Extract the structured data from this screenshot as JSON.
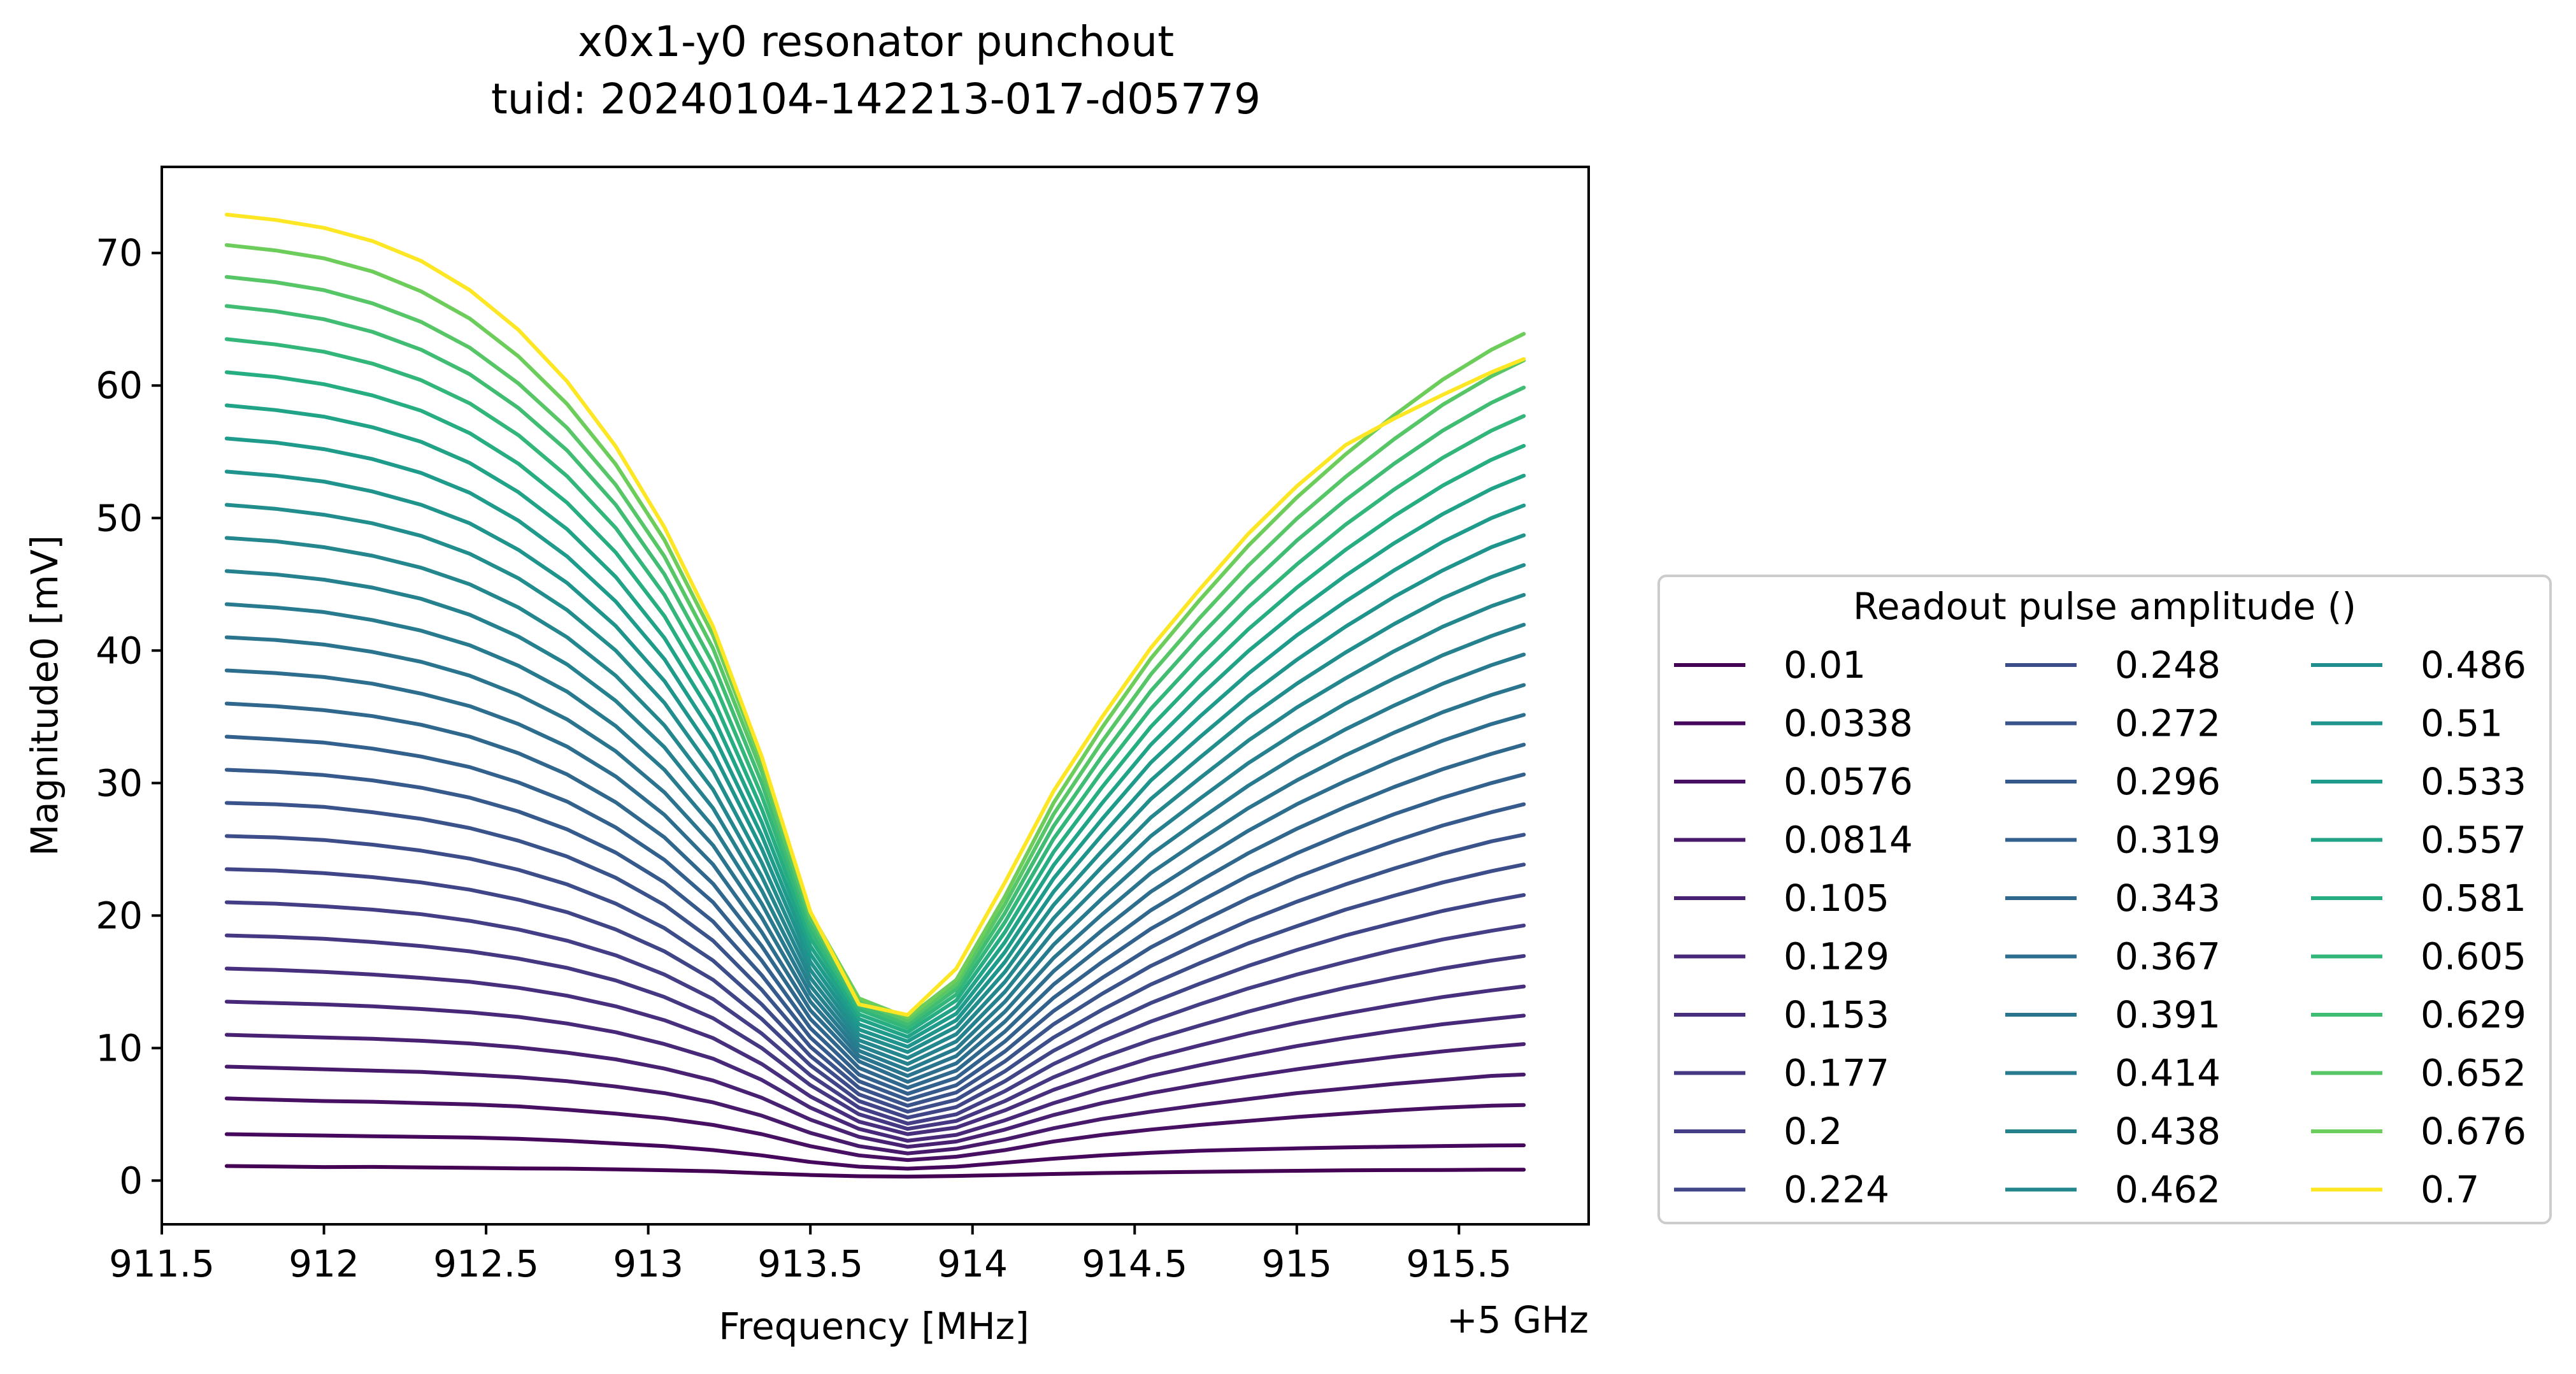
{
  "chart_data": {
    "type": "line",
    "title": "x0x1-y0 resonator punchout",
    "subtitle": "tuid: 20240104-142213-017-d05779",
    "xlabel": "Frequency [MHz]",
    "x_offset_label": "+5 GHz",
    "ylabel": "Magnitude0 [mV]",
    "xlim": [
      911.5,
      915.9
    ],
    "ylim": [
      -3.3,
      76.5
    ],
    "x_ticks": [
      "911.5",
      "912",
      "912.5",
      "913",
      "913.5",
      "914",
      "914.5",
      "915",
      "915.5"
    ],
    "x_tick_values": [
      911.5,
      912,
      912.5,
      913,
      913.5,
      914,
      914.5,
      915,
      915.5
    ],
    "y_ticks": [
      "0",
      "10",
      "20",
      "30",
      "40",
      "50",
      "60",
      "70"
    ],
    "y_tick_values": [
      0,
      10,
      20,
      30,
      40,
      50,
      60,
      70
    ],
    "grid": false,
    "legend": {
      "title": "Readout pulse amplitude ()",
      "placement": "outside-right",
      "columns": 3
    },
    "x": [
      911.7,
      911.85,
      912.0,
      912.15,
      912.3,
      912.45,
      912.6,
      912.75,
      912.9,
      913.05,
      913.2,
      913.35,
      913.5,
      913.65,
      913.8,
      913.95,
      914.1,
      914.25,
      914.4,
      914.55,
      914.7,
      914.85,
      915.0,
      915.15,
      915.3,
      915.45,
      915.6,
      915.7
    ],
    "series": [
      {
        "name": "0.01",
        "color": "#440154",
        "values": [
          1.1,
          1.06,
          1.02,
          1.03,
          1.0,
          0.96,
          0.92,
          0.9,
          0.85,
          0.78,
          0.7,
          0.55,
          0.42,
          0.33,
          0.3,
          0.35,
          0.42,
          0.5,
          0.57,
          0.62,
          0.66,
          0.7,
          0.74,
          0.77,
          0.79,
          0.8,
          0.82,
          0.82
        ]
      },
      {
        "name": "0.0338",
        "color": "#46085c",
        "values": [
          3.5,
          3.45,
          3.4,
          3.35,
          3.3,
          3.25,
          3.15,
          3.0,
          2.8,
          2.6,
          2.3,
          1.9,
          1.4,
          1.05,
          0.9,
          1.05,
          1.35,
          1.65,
          1.9,
          2.1,
          2.25,
          2.35,
          2.43,
          2.5,
          2.56,
          2.61,
          2.65,
          2.66
        ]
      },
      {
        "name": "0.0576",
        "color": "#471063",
        "values": [
          6.2,
          6.1,
          6.0,
          5.95,
          5.85,
          5.75,
          5.6,
          5.35,
          5.05,
          4.7,
          4.2,
          3.5,
          2.6,
          1.9,
          1.55,
          1.8,
          2.3,
          2.95,
          3.45,
          3.85,
          4.2,
          4.5,
          4.8,
          5.05,
          5.3,
          5.5,
          5.65,
          5.7
        ]
      },
      {
        "name": "0.0814",
        "color": "#481a6c",
        "values": [
          8.6,
          8.5,
          8.4,
          8.3,
          8.2,
          8.0,
          7.8,
          7.5,
          7.1,
          6.6,
          5.9,
          4.9,
          3.6,
          2.6,
          2.05,
          2.4,
          3.1,
          3.95,
          4.65,
          5.2,
          5.7,
          6.15,
          6.6,
          6.95,
          7.3,
          7.6,
          7.9,
          8.0
        ]
      },
      {
        "name": "0.105",
        "color": "#482173",
        "values": [
          11.0,
          10.9,
          10.8,
          10.7,
          10.55,
          10.35,
          10.05,
          9.65,
          9.15,
          8.45,
          7.55,
          6.25,
          4.6,
          3.3,
          2.55,
          2.95,
          3.85,
          4.95,
          5.85,
          6.6,
          7.25,
          7.85,
          8.4,
          8.9,
          9.35,
          9.75,
          10.1,
          10.3
        ]
      },
      {
        "name": "0.129",
        "color": "#482878",
        "values": [
          13.5,
          13.4,
          13.3,
          13.15,
          12.95,
          12.7,
          12.35,
          11.85,
          11.2,
          10.3,
          9.2,
          7.6,
          5.5,
          3.9,
          3.0,
          3.45,
          4.55,
          5.85,
          6.95,
          7.9,
          8.7,
          9.45,
          10.15,
          10.75,
          11.3,
          11.8,
          12.2,
          12.45
        ]
      },
      {
        "name": "0.153",
        "color": "#472f7d",
        "values": [
          16.0,
          15.9,
          15.75,
          15.55,
          15.3,
          15.0,
          14.55,
          13.95,
          13.15,
          12.1,
          10.75,
          8.8,
          6.35,
          4.45,
          3.5,
          4.0,
          5.3,
          6.85,
          8.1,
          9.25,
          10.2,
          11.1,
          11.9,
          12.6,
          13.25,
          13.85,
          14.35,
          14.65
        ]
      },
      {
        "name": "0.177",
        "color": "#453781",
        "values": [
          18.5,
          18.4,
          18.25,
          18.0,
          17.7,
          17.3,
          16.75,
          16.05,
          15.1,
          13.85,
          12.25,
          10.0,
          7.2,
          5.0,
          3.9,
          4.5,
          6.0,
          7.8,
          9.3,
          10.6,
          11.7,
          12.75,
          13.7,
          14.55,
          15.3,
          16.0,
          16.6,
          16.95
        ]
      },
      {
        "name": "0.2",
        "color": "#433e85",
        "values": [
          21.0,
          20.9,
          20.7,
          20.45,
          20.1,
          19.6,
          18.95,
          18.1,
          17.0,
          15.55,
          13.7,
          11.1,
          7.95,
          5.5,
          4.3,
          5.0,
          6.75,
          8.8,
          10.5,
          12.0,
          13.3,
          14.5,
          15.55,
          16.5,
          17.4,
          18.2,
          18.85,
          19.25
        ]
      },
      {
        "name": "0.224",
        "color": "#404588",
        "values": [
          23.5,
          23.4,
          23.2,
          22.9,
          22.5,
          21.95,
          21.2,
          20.25,
          18.95,
          17.3,
          15.15,
          12.2,
          8.7,
          6.0,
          4.75,
          5.55,
          7.5,
          9.8,
          11.7,
          13.4,
          14.85,
          16.2,
          17.4,
          18.5,
          19.45,
          20.35,
          21.1,
          21.55
        ]
      },
      {
        "name": "0.248",
        "color": "#3d4d8a",
        "values": [
          26.0,
          25.9,
          25.7,
          25.35,
          24.9,
          24.3,
          23.45,
          22.35,
          20.9,
          19.05,
          16.6,
          13.3,
          9.4,
          6.5,
          5.2,
          6.1,
          8.25,
          10.8,
          12.9,
          14.8,
          16.4,
          17.9,
          19.2,
          20.45,
          21.5,
          22.5,
          23.35,
          23.85
        ]
      },
      {
        "name": "0.272",
        "color": "#3a538b",
        "values": [
          28.5,
          28.4,
          28.2,
          27.8,
          27.3,
          26.6,
          25.65,
          24.45,
          22.85,
          20.8,
          18.1,
          14.4,
          10.1,
          7.0,
          5.65,
          6.65,
          9.0,
          11.8,
          14.1,
          16.2,
          17.95,
          19.6,
          21.05,
          22.35,
          23.55,
          24.65,
          25.6,
          26.1
        ]
      },
      {
        "name": "0.296",
        "color": "#365a8c",
        "values": [
          31.0,
          30.85,
          30.6,
          30.2,
          29.65,
          28.9,
          27.85,
          26.5,
          24.75,
          22.5,
          19.55,
          15.5,
          10.8,
          7.5,
          6.1,
          7.2,
          9.75,
          12.8,
          15.3,
          17.6,
          19.5,
          21.3,
          22.9,
          24.3,
          25.6,
          26.8,
          27.8,
          28.4
        ]
      },
      {
        "name": "0.319",
        "color": "#33618d",
        "values": [
          33.5,
          33.3,
          33.05,
          32.6,
          32.0,
          31.2,
          30.05,
          28.6,
          26.65,
          24.2,
          21.0,
          16.6,
          11.5,
          8.0,
          6.55,
          7.75,
          10.5,
          13.8,
          16.5,
          19.0,
          21.05,
          23.0,
          24.7,
          26.25,
          27.65,
          28.9,
          30.0,
          30.65
        ]
      },
      {
        "name": "0.343",
        "color": "#30678d",
        "values": [
          36.0,
          35.8,
          35.5,
          35.05,
          34.4,
          33.5,
          32.25,
          30.65,
          28.55,
          25.9,
          22.4,
          17.7,
          12.2,
          8.5,
          7.0,
          8.3,
          11.25,
          14.8,
          17.7,
          20.4,
          22.6,
          24.7,
          26.55,
          28.2,
          29.7,
          31.05,
          32.2,
          32.9
        ]
      },
      {
        "name": "0.367",
        "color": "#2d6e8e",
        "values": [
          38.5,
          38.3,
          38.0,
          37.5,
          36.75,
          35.8,
          34.45,
          32.75,
          30.5,
          27.6,
          23.85,
          18.75,
          12.85,
          9.0,
          7.45,
          8.85,
          12.0,
          15.8,
          18.9,
          21.8,
          24.15,
          26.4,
          28.4,
          30.15,
          31.75,
          33.2,
          34.45,
          35.15
        ]
      },
      {
        "name": "0.391",
        "color": "#2b748e",
        "values": [
          41.0,
          40.8,
          40.45,
          39.9,
          39.15,
          38.1,
          36.65,
          34.8,
          32.4,
          29.3,
          25.3,
          19.85,
          13.5,
          9.4,
          7.9,
          9.4,
          12.75,
          16.8,
          20.1,
          23.2,
          25.7,
          28.1,
          30.2,
          32.1,
          33.8,
          35.35,
          36.65,
          37.4
        ]
      },
      {
        "name": "0.414",
        "color": "#287a8e",
        "values": [
          43.5,
          43.25,
          42.9,
          42.3,
          41.5,
          40.4,
          38.85,
          36.9,
          34.3,
          31.0,
          26.7,
          20.9,
          14.1,
          9.8,
          8.35,
          9.95,
          13.5,
          17.8,
          21.3,
          24.6,
          27.25,
          29.8,
          32.05,
          34.05,
          35.85,
          37.5,
          38.9,
          39.7
        ]
      },
      {
        "name": "0.438",
        "color": "#26818e",
        "values": [
          46.0,
          45.75,
          45.35,
          44.75,
          43.9,
          42.7,
          41.05,
          38.95,
          36.2,
          32.7,
          28.1,
          21.9,
          14.7,
          10.2,
          8.8,
          10.5,
          14.25,
          18.8,
          22.5,
          26.0,
          28.8,
          31.5,
          33.85,
          36.0,
          37.9,
          39.65,
          41.1,
          41.95
        ]
      },
      {
        "name": "0.462",
        "color": "#24878e",
        "values": [
          48.5,
          48.25,
          47.8,
          47.15,
          46.25,
          45.0,
          43.25,
          41.0,
          38.1,
          34.35,
          29.5,
          22.95,
          15.3,
          10.6,
          9.25,
          11.05,
          15.0,
          19.8,
          23.7,
          27.4,
          30.35,
          33.2,
          35.7,
          37.9,
          39.95,
          41.8,
          43.35,
          44.2
        ]
      },
      {
        "name": "0.486",
        "color": "#218e8d",
        "values": [
          51.0,
          50.7,
          50.25,
          49.6,
          48.65,
          47.3,
          45.45,
          43.05,
          40.0,
          36.05,
          30.9,
          24.0,
          15.9,
          11.0,
          9.7,
          11.6,
          15.75,
          20.8,
          24.9,
          28.8,
          31.9,
          34.9,
          37.5,
          39.85,
          42.0,
          43.95,
          45.55,
          46.45
        ]
      },
      {
        "name": "0.51",
        "color": "#1f948c",
        "values": [
          53.5,
          53.2,
          52.75,
          52.0,
          51.0,
          49.6,
          47.6,
          45.1,
          41.85,
          37.7,
          32.3,
          25.05,
          16.5,
          11.4,
          10.1,
          12.1,
          16.5,
          21.8,
          26.1,
          30.2,
          33.45,
          36.55,
          39.3,
          41.8,
          44.05,
          46.05,
          47.8,
          48.7
        ]
      },
      {
        "name": "0.533",
        "color": "#1e9b8a",
        "values": [
          56.0,
          55.7,
          55.2,
          54.45,
          53.4,
          51.9,
          49.8,
          47.1,
          43.7,
          39.35,
          33.65,
          26.05,
          17.1,
          11.8,
          10.5,
          12.6,
          17.25,
          22.8,
          27.3,
          31.55,
          35.0,
          38.25,
          41.15,
          43.7,
          46.05,
          48.2,
          50.0,
          50.95
        ]
      },
      {
        "name": "0.557",
        "color": "#20a386",
        "values": [
          58.5,
          58.15,
          57.65,
          56.85,
          55.75,
          54.15,
          51.95,
          49.15,
          45.55,
          40.95,
          35.0,
          27.05,
          17.7,
          12.2,
          10.85,
          13.1,
          18.0,
          23.8,
          28.5,
          32.9,
          36.55,
          39.95,
          42.95,
          45.65,
          48.1,
          50.3,
          52.2,
          53.2
        ]
      },
      {
        "name": "0.581",
        "color": "#26ad81",
        "values": [
          61.0,
          60.65,
          60.1,
          59.25,
          58.1,
          56.4,
          54.1,
          51.15,
          47.4,
          42.6,
          36.35,
          28.05,
          18.3,
          12.55,
          11.2,
          13.6,
          18.75,
          24.8,
          29.7,
          34.25,
          38.05,
          41.6,
          44.75,
          47.6,
          50.15,
          52.45,
          54.4,
          55.45
        ]
      },
      {
        "name": "0.605",
        "color": "#32b67a",
        "values": [
          63.5,
          63.1,
          62.55,
          61.65,
          60.4,
          58.65,
          56.25,
          53.15,
          49.25,
          44.2,
          37.7,
          29.05,
          18.85,
          12.9,
          11.5,
          14.05,
          19.5,
          25.8,
          30.9,
          35.6,
          39.55,
          43.25,
          46.5,
          49.5,
          52.15,
          54.55,
          56.6,
          57.7
        ]
      },
      {
        "name": "0.629",
        "color": "#40bd72",
        "values": [
          66.0,
          65.6,
          65.0,
          64.05,
          62.7,
          60.85,
          58.3,
          55.1,
          51.0,
          45.75,
          39.0,
          30.0,
          19.35,
          13.2,
          11.8,
          14.45,
          20.2,
          26.75,
          32.05,
          36.95,
          41.05,
          44.85,
          48.3,
          51.35,
          54.1,
          56.6,
          58.7,
          59.85
        ]
      },
      {
        "name": "0.652",
        "color": "#56c667",
        "values": [
          68.2,
          67.8,
          67.2,
          66.2,
          64.8,
          62.85,
          60.15,
          56.8,
          52.5,
          47.1,
          40.15,
          30.85,
          19.8,
          13.5,
          12.05,
          14.8,
          20.85,
          27.65,
          33.15,
          38.2,
          42.45,
          46.4,
          49.95,
          53.1,
          55.95,
          58.55,
          60.7,
          61.9
        ]
      },
      {
        "name": "0.676",
        "color": "#6ccd5a",
        "values": [
          70.6,
          70.2,
          69.6,
          68.6,
          67.1,
          65.05,
          62.2,
          58.6,
          54.05,
          48.35,
          41.15,
          31.6,
          20.2,
          13.75,
          12.3,
          15.15,
          21.45,
          28.5,
          34.2,
          39.4,
          43.8,
          47.9,
          51.55,
          54.8,
          57.75,
          60.45,
          62.7,
          63.9
        ]
      },
      {
        "name": "0.7",
        "color": "#fde725",
        "values": [
          72.9,
          72.5,
          71.9,
          70.9,
          69.4,
          67.2,
          64.2,
          60.3,
          55.4,
          49.3,
          41.8,
          32.0,
          20.3,
          13.3,
          12.5,
          16.0,
          22.5,
          29.4,
          35.0,
          40.2,
          44.6,
          48.8,
          52.4,
          55.5,
          57.5,
          59.3,
          61.0,
          62.0
        ]
      }
    ]
  }
}
